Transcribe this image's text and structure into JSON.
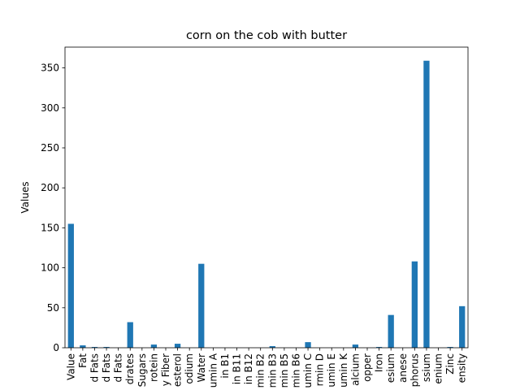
{
  "chart_data": {
    "type": "bar",
    "title": "corn on the cob with butter",
    "xlabel": "",
    "ylabel": "Values",
    "ylim": [
      0,
      376
    ],
    "yticks": [
      0,
      50,
      100,
      150,
      200,
      250,
      300,
      350
    ],
    "color": "#1f77b4",
    "grid": false,
    "legend": "none",
    "categories": [
      "Value",
      "Fat",
      "d Fats",
      "d Fats",
      "d Fats",
      "drates",
      "Sugars",
      "rotein",
      "y Fiber",
      "esterol",
      "odium",
      "Water",
      "umin A",
      "in B1",
      "in B11",
      "in B12",
      "min B2",
      "min B3",
      "min B5",
      "min B6",
      "umin C",
      "rmin D",
      "umin E",
      "umin K",
      "alcium",
      "opper",
      "Iron",
      "esium",
      "anese",
      "phorus",
      "ssium",
      "enium",
      "Zinc",
      "ensity"
    ],
    "values": [
      155,
      3,
      1,
      1,
      0,
      32,
      0,
      4,
      0,
      5,
      0,
      105,
      0,
      0,
      0,
      0,
      0,
      2,
      0,
      0,
      7,
      0,
      0,
      0,
      4,
      0,
      1,
      41,
      0,
      108,
      359,
      0,
      1,
      52
    ]
  }
}
